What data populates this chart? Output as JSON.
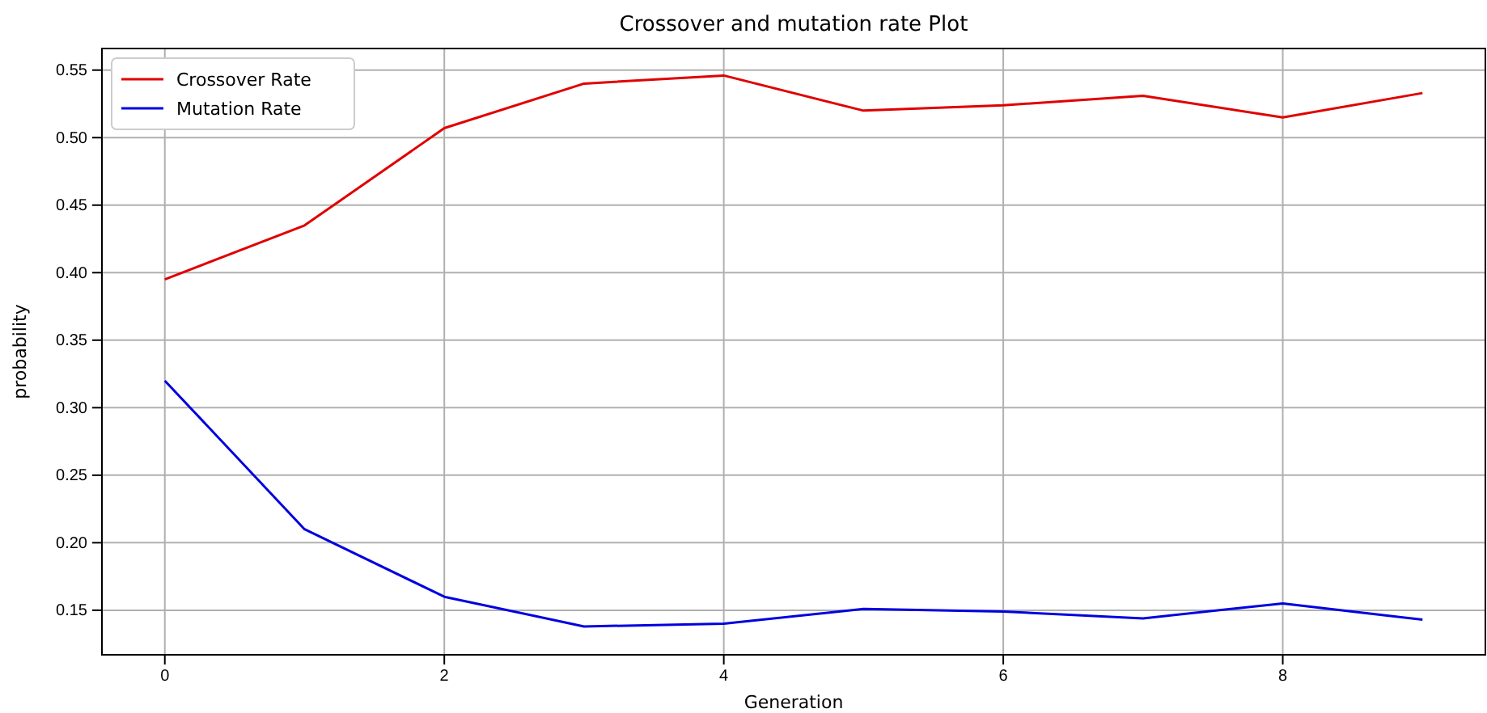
{
  "chart_data": {
    "type": "line",
    "title": "Crossover and mutation rate Plot",
    "xlabel": "Generation",
    "ylabel": "probability",
    "x": [
      0,
      1,
      2,
      3,
      4,
      5,
      6,
      7,
      8,
      9
    ],
    "series": [
      {
        "name": "Crossover Rate",
        "color": "#e00000",
        "values": [
          0.395,
          0.435,
          0.507,
          0.54,
          0.546,
          0.52,
          0.524,
          0.531,
          0.515,
          0.533
        ]
      },
      {
        "name": "Mutation Rate",
        "color": "#0000e0",
        "values": [
          0.32,
          0.21,
          0.16,
          0.138,
          0.14,
          0.151,
          0.149,
          0.144,
          0.155,
          0.143
        ]
      }
    ],
    "xlim": [
      -0.45,
      9.45
    ],
    "xticks": [
      0,
      2,
      4,
      6,
      8
    ],
    "ylim": [
      0.117,
      0.566
    ],
    "yticks": [
      {
        "value": 0.15,
        "label": "0.15"
      },
      {
        "value": 0.2,
        "label": "0.20"
      },
      {
        "value": 0.25,
        "label": "0.25"
      },
      {
        "value": 0.3,
        "label": "0.30"
      },
      {
        "value": 0.35,
        "label": "0.35"
      },
      {
        "value": 0.4,
        "label": "0.40"
      },
      {
        "value": 0.45,
        "label": "0.45"
      },
      {
        "value": 0.5,
        "label": "0.50"
      },
      {
        "value": 0.55,
        "label": "0.55"
      }
    ],
    "grid": true,
    "legend": "top left",
    "marker": "none",
    "line_style": "solid"
  }
}
